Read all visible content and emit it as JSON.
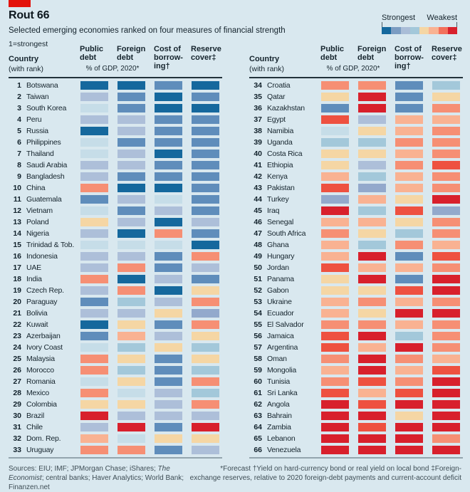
{
  "header": {
    "title": "Rout 66",
    "subtitle": "Selected emerging economies ranked on four measures of financial strength",
    "scale_note": "1=strongest"
  },
  "legend": {
    "strongest_label": "Strongest",
    "weakest_label": "Weakest",
    "colors": [
      "#15689d",
      "#7b9cc2",
      "#aabdd7",
      "#a3c8da",
      "#f5d6a4",
      "#f9b292",
      "#f3705b",
      "#d8202c"
    ]
  },
  "table_header": {
    "country": "Country",
    "with_rank": "(with rank)",
    "col_headers": [
      "Public\ndebt",
      "Foreign\ndebt",
      "Cost of\nborrow-\ning†",
      "Reserve\ncover‡"
    ],
    "subheader": "% of GDP, 2020*"
  },
  "chart_data": {
    "type": "heatmap",
    "title": "Rout 66",
    "subtitle": "Selected emerging economies ranked on four measures of financial strength",
    "scale": "1=strongest, 66=weakest; cell colour encodes rank from strongest (dark blue) to weakest (red)",
    "measures": [
      "Public debt, % of GDP, 2020*",
      "Foreign debt, % of GDP, 2020*",
      "Cost of borrowing†",
      "Reserve cover‡"
    ],
    "palette": {
      "b1": "#15689d",
      "b2": "#5f8dbb",
      "b3": "#93a9cc",
      "b4": "#adbfd9",
      "b5": "#a3c8da",
      "b6": "#c6dde8",
      "o1": "#f5d6a4",
      "o2": "#f9b292",
      "o3": "#f68f74",
      "o4": "#ee5140",
      "r": "#d8202c"
    },
    "scale_order_strongest_to_weakest": [
      "b1",
      "b2",
      "b3",
      "b4",
      "b5",
      "b6",
      "o1",
      "o2",
      "o3",
      "o4",
      "r"
    ],
    "rows": [
      {
        "rank": 1,
        "country": "Botswana",
        "levels": [
          "b1",
          "b1",
          "b2",
          "b1"
        ]
      },
      {
        "rank": 2,
        "country": "Taiwan",
        "levels": [
          "b4",
          "b2",
          "b1",
          "b2"
        ]
      },
      {
        "rank": 3,
        "country": "South Korea",
        "levels": [
          "b6",
          "b2",
          "b1",
          "b1"
        ]
      },
      {
        "rank": 4,
        "country": "Peru",
        "levels": [
          "b4",
          "b4",
          "b2",
          "b2"
        ]
      },
      {
        "rank": 5,
        "country": "Russia",
        "levels": [
          "b1",
          "b4",
          "b2",
          "b2"
        ]
      },
      {
        "rank": 6,
        "country": "Philippines",
        "levels": [
          "b6",
          "b2",
          "b2",
          "b2"
        ]
      },
      {
        "rank": 7,
        "country": "Thailand",
        "levels": [
          "b6",
          "b4",
          "b1",
          "b2"
        ]
      },
      {
        "rank": 8,
        "country": "Saudi Arabia",
        "levels": [
          "b4",
          "b4",
          "b2",
          "b2"
        ]
      },
      {
        "rank": 9,
        "country": "Bangladesh",
        "levels": [
          "b4",
          "b2",
          "b2",
          "b2"
        ]
      },
      {
        "rank": 10,
        "country": "China",
        "levels": [
          "o3",
          "b1",
          "b1",
          "b2"
        ]
      },
      {
        "rank": 11,
        "country": "Guatemala",
        "levels": [
          "b2",
          "b4",
          "b6",
          "b2"
        ]
      },
      {
        "rank": 12,
        "country": "Vietnam",
        "levels": [
          "b6",
          "b2",
          "b4",
          "b2"
        ]
      },
      {
        "rank": 13,
        "country": "Poland",
        "levels": [
          "o1",
          "b4",
          "b1",
          "b4"
        ]
      },
      {
        "rank": 14,
        "country": "Nigeria",
        "levels": [
          "b4",
          "b1",
          "o3",
          "b2"
        ]
      },
      {
        "rank": 15,
        "country": "Trinidad & Tob.",
        "levels": [
          "b6",
          "b6",
          "b6",
          "b1"
        ]
      },
      {
        "rank": 16,
        "country": "Indonesia",
        "levels": [
          "b4",
          "b4",
          "b2",
          "o3"
        ]
      },
      {
        "rank": 17,
        "country": "UAE",
        "levels": [
          "b4",
          "o3",
          "b2",
          "b4"
        ]
      },
      {
        "rank": 18,
        "country": "India",
        "levels": [
          "o3",
          "b1",
          "b4",
          "b2"
        ]
      },
      {
        "rank": 19,
        "country": "Czech Rep.",
        "levels": [
          "b4",
          "o3",
          "b1",
          "o1"
        ]
      },
      {
        "rank": 20,
        "country": "Paraguay",
        "levels": [
          "b2",
          "b5",
          "b4",
          "o3"
        ]
      },
      {
        "rank": 21,
        "country": "Bolivia",
        "levels": [
          "b4",
          "b4",
          "o1",
          "b3"
        ]
      },
      {
        "rank": 22,
        "country": "Kuwait",
        "levels": [
          "b1",
          "o1",
          "b2",
          "o3"
        ]
      },
      {
        "rank": 23,
        "country": "Azerbaijan",
        "levels": [
          "b2",
          "o2",
          "b4",
          "o1"
        ]
      },
      {
        "rank": 24,
        "country": "Ivory Coast",
        "levels": [
          "b6",
          "b5",
          "o1",
          "b5"
        ]
      },
      {
        "rank": 25,
        "country": "Malaysia",
        "levels": [
          "o3",
          "o1",
          "b2",
          "o1"
        ]
      },
      {
        "rank": 26,
        "country": "Morocco",
        "levels": [
          "o3",
          "b5",
          "b2",
          "b5"
        ]
      },
      {
        "rank": 27,
        "country": "Romania",
        "levels": [
          "b6",
          "o1",
          "b2",
          "o3"
        ]
      },
      {
        "rank": 28,
        "country": "Mexico",
        "levels": [
          "o3",
          "b6",
          "b4",
          "b5"
        ]
      },
      {
        "rank": 29,
        "country": "Colombia",
        "levels": [
          "o1",
          "o1",
          "b4",
          "o3"
        ]
      },
      {
        "rank": 30,
        "country": "Brazil",
        "levels": [
          "r",
          "b4",
          "b4",
          "b4"
        ]
      },
      {
        "rank": 31,
        "country": "Chile",
        "levels": [
          "b4",
          "r",
          "b2",
          "r"
        ]
      },
      {
        "rank": 32,
        "country": "Dom. Rep.",
        "levels": [
          "o2",
          "b6",
          "o1",
          "o1"
        ]
      },
      {
        "rank": 33,
        "country": "Uruguay",
        "levels": [
          "o3",
          "o3",
          "b2",
          "b4"
        ]
      },
      {
        "rank": 34,
        "country": "Croatia",
        "levels": [
          "o3",
          "o3",
          "b2",
          "b5"
        ]
      },
      {
        "rank": 35,
        "country": "Qatar",
        "levels": [
          "o1",
          "r",
          "b2",
          "o1"
        ]
      },
      {
        "rank": 36,
        "country": "Kazakhstan",
        "levels": [
          "b2",
          "r",
          "b2",
          "o3"
        ]
      },
      {
        "rank": 37,
        "country": "Egypt",
        "levels": [
          "o4",
          "b4",
          "o2",
          "o2"
        ]
      },
      {
        "rank": 38,
        "country": "Namibia",
        "levels": [
          "b6",
          "o1",
          "o2",
          "o3"
        ]
      },
      {
        "rank": 39,
        "country": "Uganda",
        "levels": [
          "b5",
          "b5",
          "o3",
          "o3"
        ]
      },
      {
        "rank": 40,
        "country": "Costa Rica",
        "levels": [
          "o1",
          "o1",
          "o2",
          "o3"
        ]
      },
      {
        "rank": 41,
        "country": "Ethiopia",
        "levels": [
          "o1",
          "b4",
          "o3",
          "o4"
        ]
      },
      {
        "rank": 42,
        "country": "Kenya",
        "levels": [
          "o2",
          "b5",
          "o2",
          "o3"
        ]
      },
      {
        "rank": 43,
        "country": "Pakistan",
        "levels": [
          "o4",
          "b3",
          "o2",
          "o3"
        ]
      },
      {
        "rank": 44,
        "country": "Turkey",
        "levels": [
          "b3",
          "o2",
          "o1",
          "r"
        ]
      },
      {
        "rank": 45,
        "country": "Iraq",
        "levels": [
          "r",
          "b5",
          "o4",
          "b3"
        ]
      },
      {
        "rank": 46,
        "country": "Senegal",
        "levels": [
          "o2",
          "o2",
          "o1",
          "o3"
        ]
      },
      {
        "rank": 47,
        "country": "South Africa",
        "levels": [
          "o3",
          "o1",
          "b5",
          "o3"
        ]
      },
      {
        "rank": 48,
        "country": "Ghana",
        "levels": [
          "o2",
          "b5",
          "o3",
          "o2"
        ]
      },
      {
        "rank": 49,
        "country": "Hungary",
        "levels": [
          "o2",
          "r",
          "b2",
          "o4"
        ]
      },
      {
        "rank": 50,
        "country": "Jordan",
        "levels": [
          "o4",
          "o2",
          "o2",
          "o3"
        ]
      },
      {
        "rank": 51,
        "country": "Panama",
        "levels": [
          "o1",
          "r",
          "b2",
          "r"
        ]
      },
      {
        "rank": 52,
        "country": "Gabon",
        "levels": [
          "o1",
          "o1",
          "o4",
          "r"
        ]
      },
      {
        "rank": 53,
        "country": "Ukraine",
        "levels": [
          "o2",
          "o3",
          "o2",
          "o3"
        ]
      },
      {
        "rank": 54,
        "country": "Ecuador",
        "levels": [
          "o2",
          "o1",
          "r",
          "r"
        ]
      },
      {
        "rank": 55,
        "country": "El Salvador",
        "levels": [
          "o3",
          "o3",
          "o2",
          "o3"
        ]
      },
      {
        "rank": 56,
        "country": "Jamaica",
        "levels": [
          "o4",
          "r",
          "b5",
          "o3"
        ]
      },
      {
        "rank": 57,
        "country": "Argentina",
        "levels": [
          "o4",
          "o2",
          "r",
          "o3"
        ]
      },
      {
        "rank": 58,
        "country": "Oman",
        "levels": [
          "o3",
          "r",
          "o3",
          "o2"
        ]
      },
      {
        "rank": 59,
        "country": "Mongolia",
        "levels": [
          "o2",
          "r",
          "o2",
          "o4"
        ]
      },
      {
        "rank": 60,
        "country": "Tunisia",
        "levels": [
          "o3",
          "o4",
          "o3",
          "r"
        ]
      },
      {
        "rank": 61,
        "country": "Sri Lanka",
        "levels": [
          "o4",
          "o2",
          "o4",
          "r"
        ]
      },
      {
        "rank": 62,
        "country": "Angola",
        "levels": [
          "r",
          "o4",
          "r",
          "r"
        ]
      },
      {
        "rank": 63,
        "country": "Bahrain",
        "levels": [
          "r",
          "r",
          "o1",
          "r"
        ]
      },
      {
        "rank": 64,
        "country": "Zambia",
        "levels": [
          "r",
          "o4",
          "r",
          "r"
        ]
      },
      {
        "rank": 65,
        "country": "Lebanon",
        "levels": [
          "r",
          "r",
          "r",
          "o3"
        ]
      },
      {
        "rank": 66,
        "country": "Venezuela",
        "levels": [
          "r",
          "r",
          "r",
          "r"
        ]
      }
    ]
  },
  "footer": {
    "sources_prefix": "Sources: EIU; IMF; JPMorgan Chase; iShares; ",
    "sources_italic": "The Economist",
    "sources_suffix": "; central banks; Haver Analytics; World Bank; Finanzen.net",
    "footnotes": "*Forecast   †Yield on hard-currency bond or real yield on local bond   ‡Foreign-exchange reserves, relative to 2020 foreign-debt payments and current-account deficit"
  }
}
